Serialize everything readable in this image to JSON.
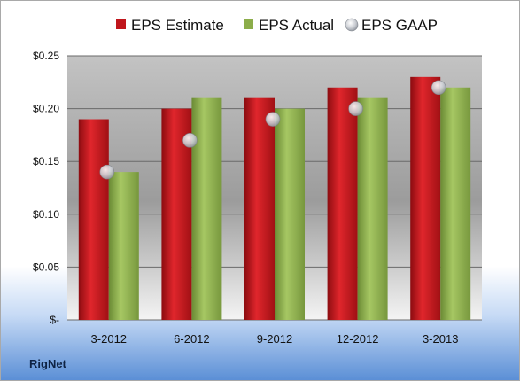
{
  "company": "RigNet",
  "chart_data": {
    "type": "bar",
    "categories": [
      "3-2012",
      "6-2012",
      "9-2012",
      "12-2012",
      "3-2013"
    ],
    "series": [
      {
        "name": "EPS Estimate",
        "kind": "bar",
        "color": "#c0161c",
        "values": [
          0.19,
          0.2,
          0.21,
          0.22,
          0.23
        ]
      },
      {
        "name": "EPS Actual",
        "kind": "bar",
        "color": "#8cad4a",
        "values": [
          0.14,
          0.21,
          0.2,
          0.21,
          0.22
        ]
      },
      {
        "name": "EPS GAAP",
        "kind": "marker",
        "color": "#b8bcc4",
        "values": [
          0.14,
          0.17,
          0.19,
          0.2,
          0.22
        ]
      }
    ],
    "y_ticks": [
      "$-",
      "$0.05",
      "$0.10",
      "$0.15",
      "$0.20",
      "$0.25"
    ],
    "ylim": [
      0,
      0.25
    ],
    "grid": true,
    "legend_position": "top"
  }
}
